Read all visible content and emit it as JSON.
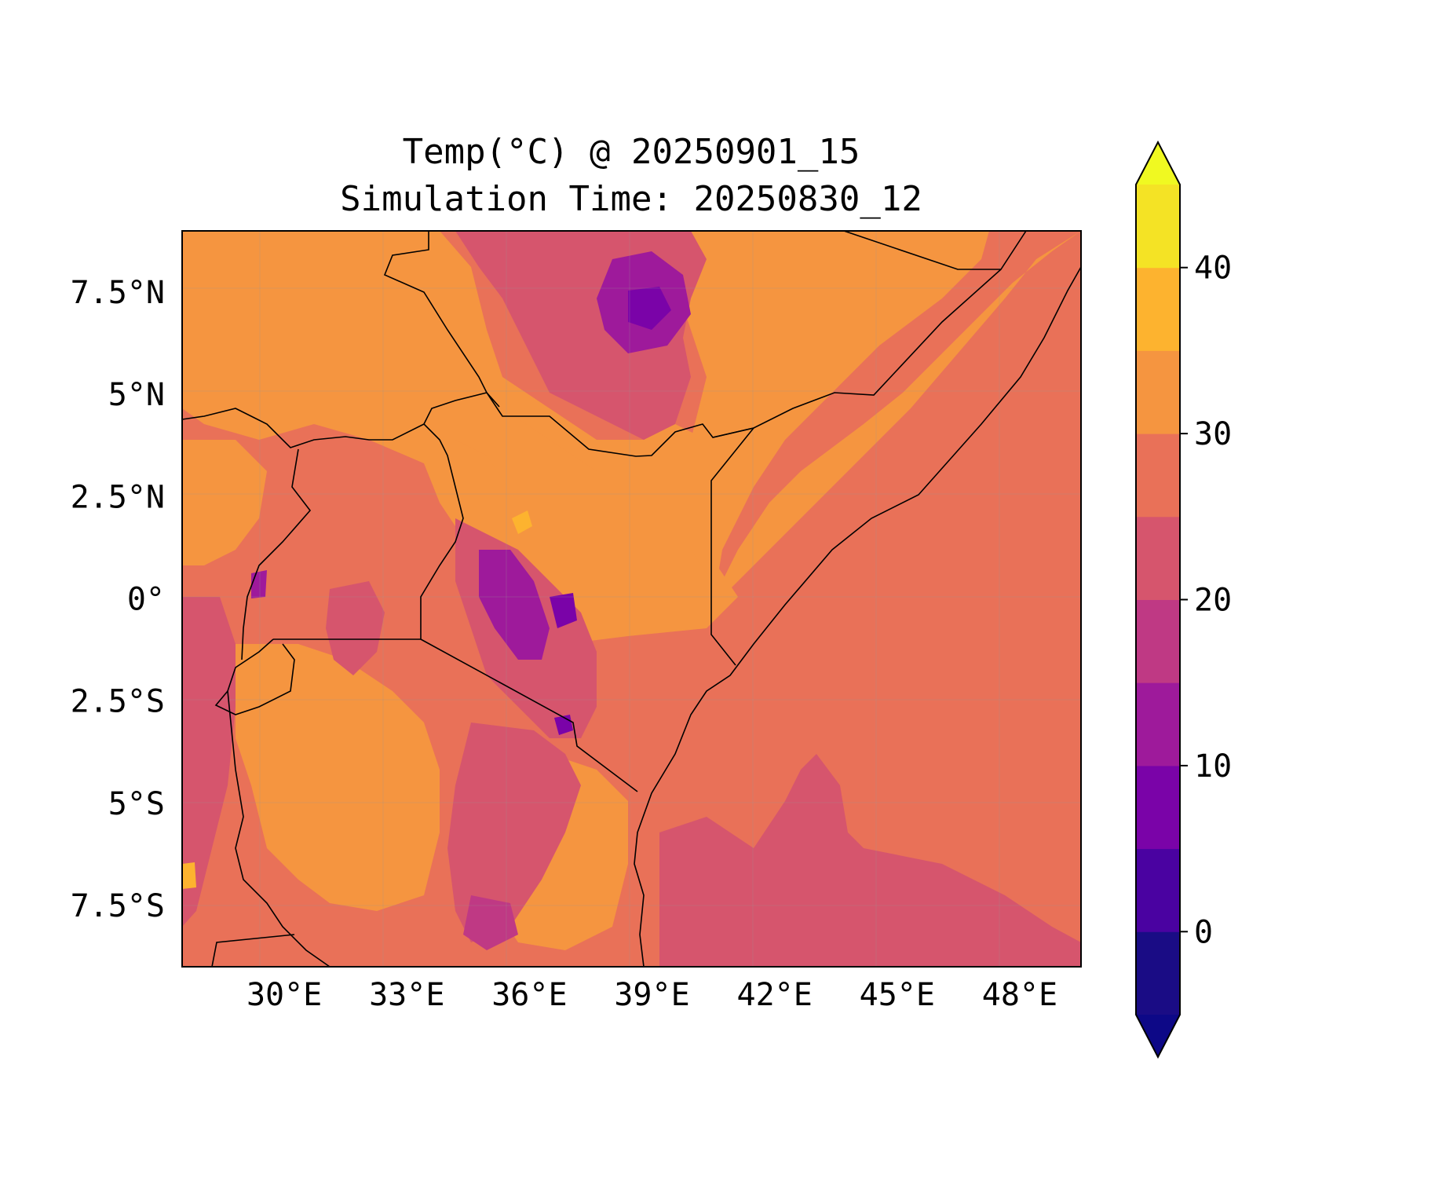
{
  "title": {
    "line1": "Temp(°C) @ 20250901_15",
    "line2": "Simulation Time: 20250830_12"
  },
  "map": {
    "lon_range": [
      27.5,
      49.5
    ],
    "lat_range": [
      -9.0,
      9.0
    ],
    "x_ticks": [
      {
        "value": 30,
        "label": "30°E"
      },
      {
        "value": 33,
        "label": "33°E"
      },
      {
        "value": 36,
        "label": "36°E"
      },
      {
        "value": 39,
        "label": "39°E"
      },
      {
        "value": 42,
        "label": "42°E"
      },
      {
        "value": 45,
        "label": "45°E"
      },
      {
        "value": 48,
        "label": "48°E"
      }
    ],
    "y_ticks": [
      {
        "value": 7.5,
        "label": "7.5°N"
      },
      {
        "value": 5,
        "label": "5°N"
      },
      {
        "value": 2.5,
        "label": "2.5°N"
      },
      {
        "value": 0,
        "label": "0°"
      },
      {
        "value": -2.5,
        "label": "2.5°S"
      },
      {
        "value": -5,
        "label": "5°S"
      },
      {
        "value": -7.5,
        "label": "7.5°S"
      }
    ],
    "variable": "Temp(°C)"
  },
  "colorbar": {
    "range": [
      -5,
      45
    ],
    "levels": [
      -5,
      0,
      5,
      10,
      15,
      20,
      25,
      30,
      35,
      40,
      45
    ],
    "colors": [
      "#1a0c85",
      "#4a02a1",
      "#7a03a8",
      "#9e1a9b",
      "#bf3984",
      "#d6556d",
      "#e97158",
      "#f59540",
      "#fdb32f",
      "#f4e325"
    ],
    "under_color": "#0d0887",
    "over_color": "#f0f921",
    "ticks": [
      {
        "value": 0,
        "label": "0"
      },
      {
        "value": 10,
        "label": "10"
      },
      {
        "value": 20,
        "label": "20"
      },
      {
        "value": 30,
        "label": "30"
      },
      {
        "value": 40,
        "label": "40"
      }
    ],
    "extend": "both"
  }
}
